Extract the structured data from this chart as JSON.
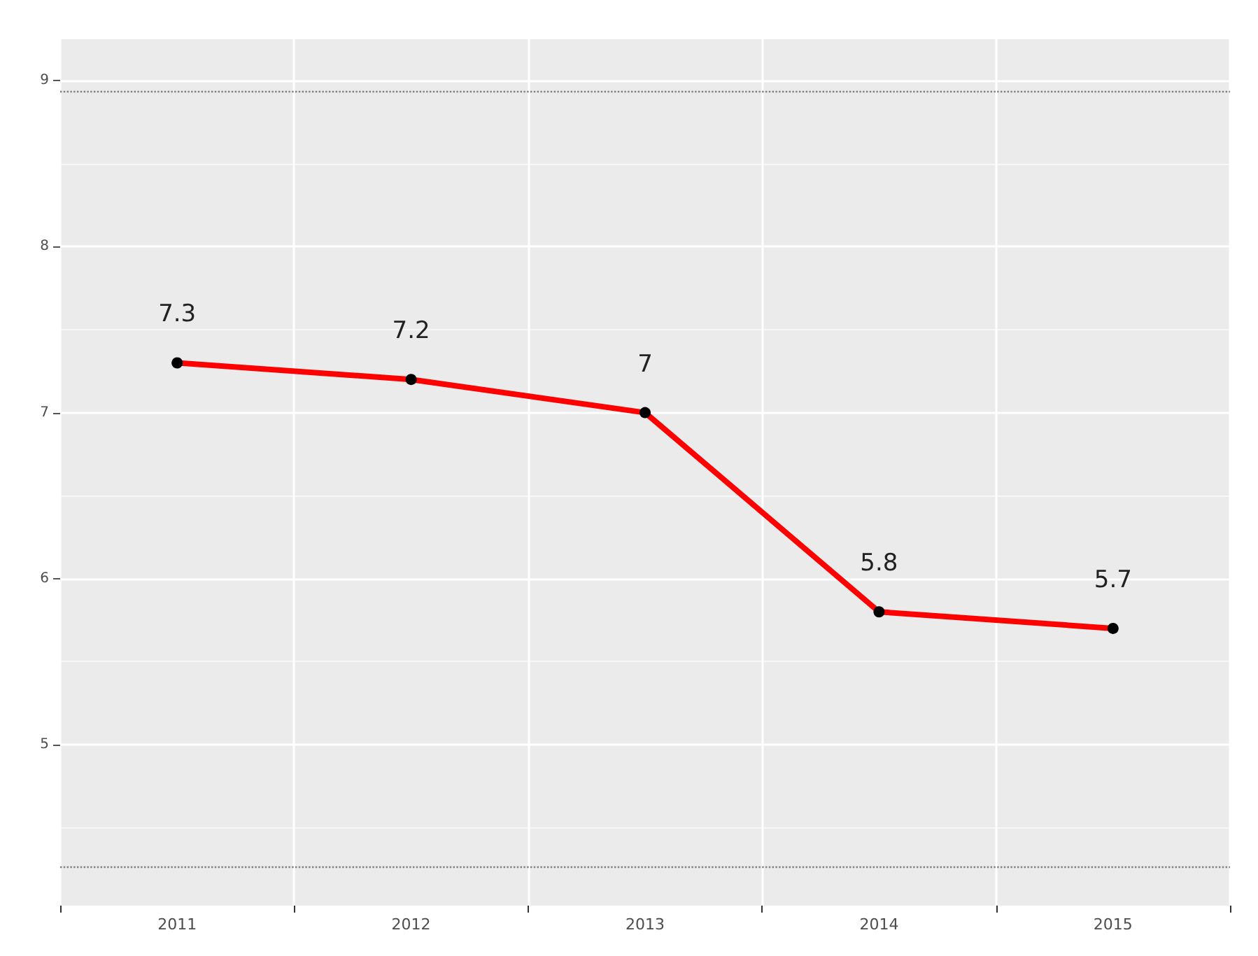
{
  "chart_data": {
    "type": "line",
    "categories": [
      "2011",
      "2012",
      "2013",
      "2014",
      "2015"
    ],
    "series": [
      {
        "color": "#ff0000",
        "values": [
          7.3,
          7.2,
          7,
          5.8,
          5.7
        ]
      }
    ],
    "ylim": [
      4.03,
      9.25
    ],
    "yticks": [
      5,
      6,
      7,
      8,
      9
    ],
    "grid": true,
    "marker": "circle",
    "line_style": "solid",
    "data_labels": true,
    "ref_lines": [
      {
        "axis": "y",
        "value": 8.94,
        "color": "#808080",
        "line_style": "dotted"
      },
      {
        "axis": "y",
        "value": 4.26,
        "color": "#808080",
        "line_style": "dotted"
      }
    ]
  }
}
